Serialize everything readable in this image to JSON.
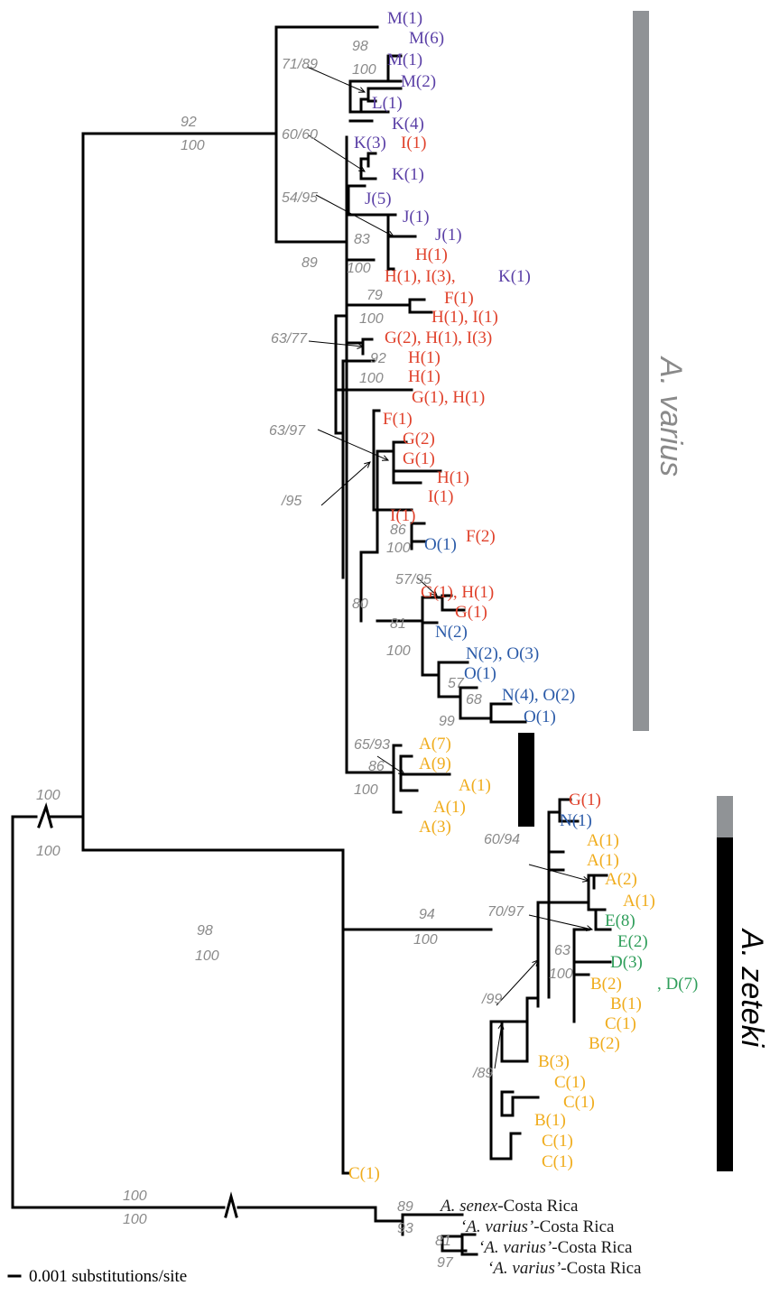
{
  "colors": {
    "purple": "#5a3fa6",
    "red": "#e0412b",
    "blue": "#2a5aa8",
    "orange": "#f0ac1c",
    "green": "#2f9e5a",
    "black": "#1a1a1a",
    "support_gray": "#8a8a8a",
    "bar_gray": "#909396",
    "bar_black": "#000000"
  },
  "tips": [
    {
      "label": "M(1)",
      "color": "purple"
    },
    {
      "label": "M(6)",
      "color": "purple"
    },
    {
      "label": "M(1)",
      "color": "purple"
    },
    {
      "label": "M(2)",
      "color": "purple"
    },
    {
      "label": "L(1)",
      "color": "purple"
    },
    {
      "label": "K(4)",
      "color": "purple"
    },
    {
      "label": "K(3)",
      "color": "purple"
    },
    {
      "label": "I(1)",
      "color": "red"
    },
    {
      "label": "K(1)",
      "color": "purple"
    },
    {
      "label": "J(5)",
      "color": "purple"
    },
    {
      "label": "J(1)",
      "color": "purple"
    },
    {
      "label": "J(1)",
      "color": "purple"
    },
    {
      "label": "H(1)",
      "color": "red"
    },
    {
      "label": "H(1), I(3),",
      "color": "red"
    },
    {
      "label": "K(1)",
      "color": "purple"
    },
    {
      "label": "F(1)",
      "color": "red"
    },
    {
      "label": "H(1), I(1)",
      "color": "red"
    },
    {
      "label": "G(2), H(1), I(3)",
      "color": "red"
    },
    {
      "label": "H(1)",
      "color": "red"
    },
    {
      "label": "H(1)",
      "color": "red"
    },
    {
      "label": "G(1), H(1)",
      "color": "red"
    },
    {
      "label": "F(1)",
      "color": "red"
    },
    {
      "label": "G(2)",
      "color": "red"
    },
    {
      "label": "G(1)",
      "color": "red"
    },
    {
      "label": "H(1)",
      "color": "red"
    },
    {
      "label": "I(1)",
      "color": "red"
    },
    {
      "label": "I(1)",
      "color": "red"
    },
    {
      "label": "F(2)",
      "color": "red"
    },
    {
      "label": "O(1)",
      "color": "blue"
    },
    {
      "label": "G(1), H(1)",
      "color": "red"
    },
    {
      "label": "G(1)",
      "color": "red"
    },
    {
      "label": "N(2)",
      "color": "blue"
    },
    {
      "label": "N(2), O(3)",
      "color": "blue"
    },
    {
      "label": "O(1)",
      "color": "blue"
    },
    {
      "label": "N(4), O(2)",
      "color": "blue"
    },
    {
      "label": "O(1)",
      "color": "blue"
    },
    {
      "label": "A(7)",
      "color": "orange"
    },
    {
      "label": "A(9)",
      "color": "orange"
    },
    {
      "label": "A(1)",
      "color": "orange"
    },
    {
      "label": "A(1)",
      "color": "orange"
    },
    {
      "label": "A(3)",
      "color": "orange"
    },
    {
      "label": "G(1)",
      "color": "red"
    },
    {
      "label": "N(1)",
      "color": "blue"
    },
    {
      "label": "A(1)",
      "color": "orange"
    },
    {
      "label": "A(1)",
      "color": "orange"
    },
    {
      "label": "A(2)",
      "color": "orange"
    },
    {
      "label": "A(1)",
      "color": "orange"
    },
    {
      "label": "E(8)",
      "color": "green"
    },
    {
      "label": "E(2)",
      "color": "green"
    },
    {
      "label": "D(3)",
      "color": "green"
    },
    {
      "label": "B(2)",
      "color": "orange"
    },
    {
      "label": ", D(7)",
      "color": "green"
    },
    {
      "label": "B(1)",
      "color": "orange"
    },
    {
      "label": "C(1)",
      "color": "orange"
    },
    {
      "label": "B(2)",
      "color": "orange"
    },
    {
      "label": "B(3)",
      "color": "orange"
    },
    {
      "label": "C(1)",
      "color": "orange"
    },
    {
      "label": "C(1)",
      "color": "orange"
    },
    {
      "label": "B(1)",
      "color": "orange"
    },
    {
      "label": "C(1)",
      "color": "orange"
    },
    {
      "label": "C(1)",
      "color": "orange"
    },
    {
      "label": "C(1)",
      "color": "orange"
    }
  ],
  "outgroup_tips": [
    {
      "label": "A. senex-Costa Rica"
    },
    {
      "label": "‘A. varius’-Costa Rica"
    },
    {
      "label": "‘A. varius’-Costa Rica"
    },
    {
      "label": "‘A. varius’-Costa Rica"
    }
  ],
  "support": [
    "92",
    "100",
    "98",
    "100",
    "71/89",
    "60/60",
    "54/95",
    "89",
    "83",
    "100",
    "79",
    "100",
    "63/77",
    "92",
    "100",
    "63/97",
    "/95",
    "86",
    "100",
    "57/95",
    "80",
    "81",
    "100",
    "57",
    "68",
    "99",
    "65/93",
    "86",
    "100",
    "100",
    "100",
    "60/94",
    "70/97",
    "63",
    "100",
    "/99",
    "/89",
    "94",
    "100",
    "98",
    "100",
    "100",
    "100",
    "89",
    "93",
    "81",
    "97"
  ],
  "clades": {
    "varius": "A. varius",
    "zeteki": "A. zeteki"
  },
  "scale_label": "0.001 substitutions/site"
}
